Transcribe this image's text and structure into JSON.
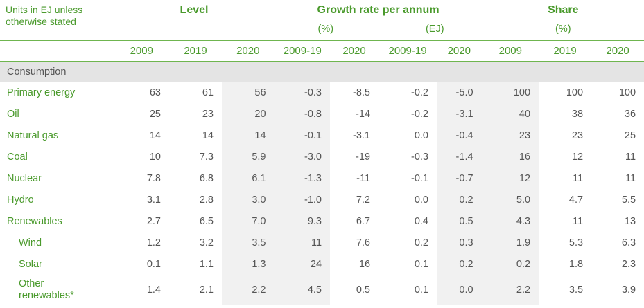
{
  "header": {
    "units_line1": "Units in EJ unless",
    "units_line2": "otherwise stated",
    "level_title": "Level",
    "growth_title": "Growth rate per annum",
    "growth_pct": "(%)",
    "growth_ej": "(EJ)",
    "share_title": "Share",
    "share_pct": "(%)",
    "years": [
      "2009",
      "2019",
      "2020",
      "2009-19",
      "2020",
      "2009-19",
      "2020",
      "2009",
      "2019",
      "2020"
    ]
  },
  "section": {
    "label": "Consumption"
  },
  "rows": [
    {
      "label": "Primary energy",
      "values": [
        "63",
        "61",
        "56",
        "-0.3",
        "-8.5",
        "-0.2",
        "-5.0",
        "100",
        "100",
        "100"
      ]
    },
    {
      "label": "Oil",
      "values": [
        "25",
        "23",
        "20",
        "-0.8",
        "-14",
        "-0.2",
        "-3.1",
        "40",
        "38",
        "36"
      ]
    },
    {
      "label": "Natural gas",
      "values": [
        "14",
        "14",
        "14",
        "-0.1",
        "-3.1",
        "0.0",
        "-0.4",
        "23",
        "23",
        "25"
      ]
    },
    {
      "label": "Coal",
      "values": [
        "10",
        "7.3",
        "5.9",
        "-3.0",
        "-19",
        "-0.3",
        "-1.4",
        "16",
        "12",
        "11"
      ]
    },
    {
      "label": "Nuclear",
      "values": [
        "7.8",
        "6.8",
        "6.1",
        "-1.3",
        "-11",
        "-0.1",
        "-0.7",
        "12",
        "11",
        "11"
      ]
    },
    {
      "label": "Hydro",
      "values": [
        "3.1",
        "2.8",
        "3.0",
        "-1.0",
        "7.2",
        "0.0",
        "0.2",
        "5.0",
        "4.7",
        "5.5"
      ]
    },
    {
      "label": "Renewables",
      "values": [
        "2.7",
        "6.5",
        "7.0",
        "9.3",
        "6.7",
        "0.4",
        "0.5",
        "4.3",
        "11",
        "13"
      ]
    },
    {
      "label": "Wind",
      "values": [
        "1.2",
        "3.2",
        "3.5",
        "11",
        "7.6",
        "0.2",
        "0.3",
        "1.9",
        "5.3",
        "6.3"
      ]
    },
    {
      "label": "Solar",
      "values": [
        "0.1",
        "1.1",
        "1.3",
        "24",
        "16",
        "0.1",
        "0.2",
        "0.2",
        "1.8",
        "2.3"
      ]
    },
    {
      "label_line1": "Other",
      "label_line2": "renewables*",
      "values": [
        "1.4",
        "2.1",
        "2.2",
        "4.5",
        "0.5",
        "0.1",
        "0.0",
        "2.2",
        "3.5",
        "3.9"
      ]
    }
  ]
}
